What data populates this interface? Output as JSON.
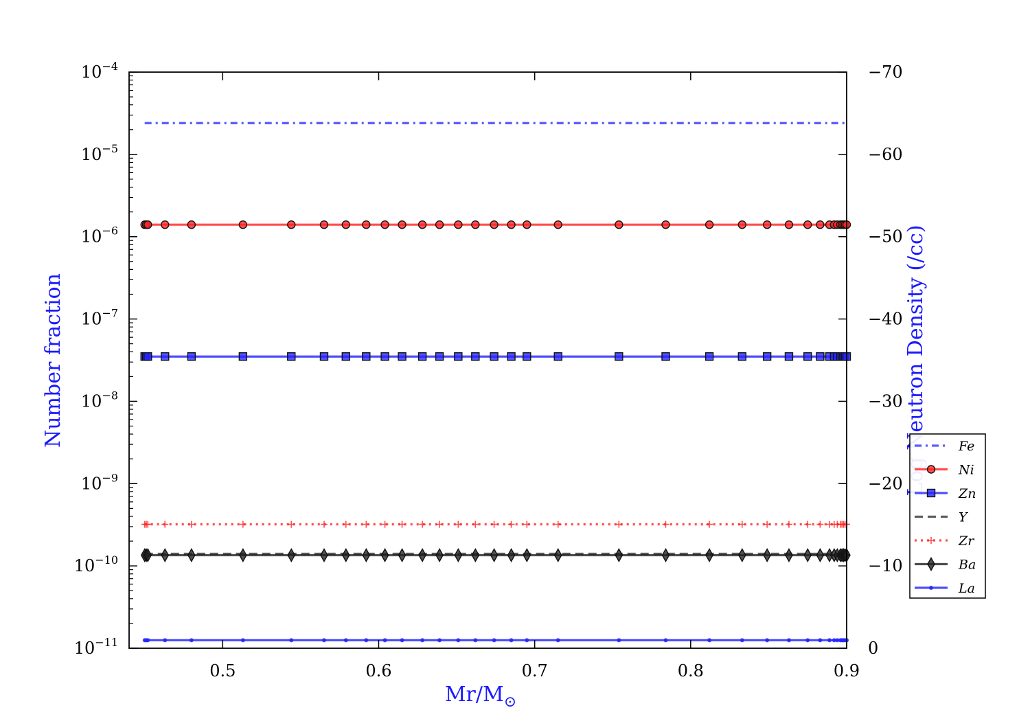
{
  "chart_data": {
    "type": "line",
    "xlabel": "Mr/M",
    "xlabel_symbol": "⊙",
    "ylabel": "Number fraction",
    "y2label": "Log Neutron Density (/cc)",
    "xlim": [
      0.44,
      0.9
    ],
    "ylim": [
      1e-11,
      0.0001
    ],
    "yscale": "log",
    "y2lim": [
      0,
      -70
    ],
    "x_ticks": [
      "0.5",
      "0.6",
      "0.7",
      "0.8",
      "0.9"
    ],
    "y_ticks": [
      {
        "base": "10",
        "exp": "−4"
      },
      {
        "base": "10",
        "exp": "−5"
      },
      {
        "base": "10",
        "exp": "−6"
      },
      {
        "base": "10",
        "exp": "−7"
      },
      {
        "base": "10",
        "exp": "−8"
      },
      {
        "base": "10",
        "exp": "−9"
      },
      {
        "base": "10",
        "exp": "−10"
      },
      {
        "base": "10",
        "exp": "−11"
      }
    ],
    "y2_ticks": [
      "−70",
      "−60",
      "−50",
      "−40",
      "−30",
      "−20",
      "−10",
      "0"
    ],
    "legend_position": "right",
    "x": [
      0.45,
      0.451,
      0.452,
      0.463,
      0.48,
      0.513,
      0.544,
      0.565,
      0.579,
      0.592,
      0.604,
      0.615,
      0.628,
      0.639,
      0.651,
      0.662,
      0.674,
      0.685,
      0.695,
      0.715,
      0.754,
      0.784,
      0.812,
      0.833,
      0.849,
      0.863,
      0.875,
      0.883,
      0.889,
      0.892,
      0.894,
      0.896,
      0.897,
      0.898,
      0.899,
      0.9
    ],
    "series": [
      {
        "name": "Fe",
        "value": 2.4e-05,
        "color": "#3333ff",
        "linestyle": "dashdot",
        "marker": "none"
      },
      {
        "name": "Ni",
        "value": 1.4e-06,
        "color": "#ff2222",
        "linestyle": "solid",
        "marker": "circle"
      },
      {
        "name": "Zn",
        "value": 3.5e-08,
        "color": "#2222ff",
        "linestyle": "solid",
        "marker": "square"
      },
      {
        "name": "Y",
        "value": 1.4e-10,
        "color": "#333333",
        "linestyle": "dashed",
        "marker": "none"
      },
      {
        "name": "Zr",
        "value": 3.2e-10,
        "color": "#ff2222",
        "linestyle": "dotted",
        "marker": "plus"
      },
      {
        "name": "Ba",
        "value": 1.35e-10,
        "color": "#222222",
        "linestyle": "solid",
        "marker": "diamond"
      },
      {
        "name": "La",
        "value": 1.25e-11,
        "color": "#2222ff",
        "linestyle": "solid",
        "marker": "dot"
      }
    ]
  }
}
